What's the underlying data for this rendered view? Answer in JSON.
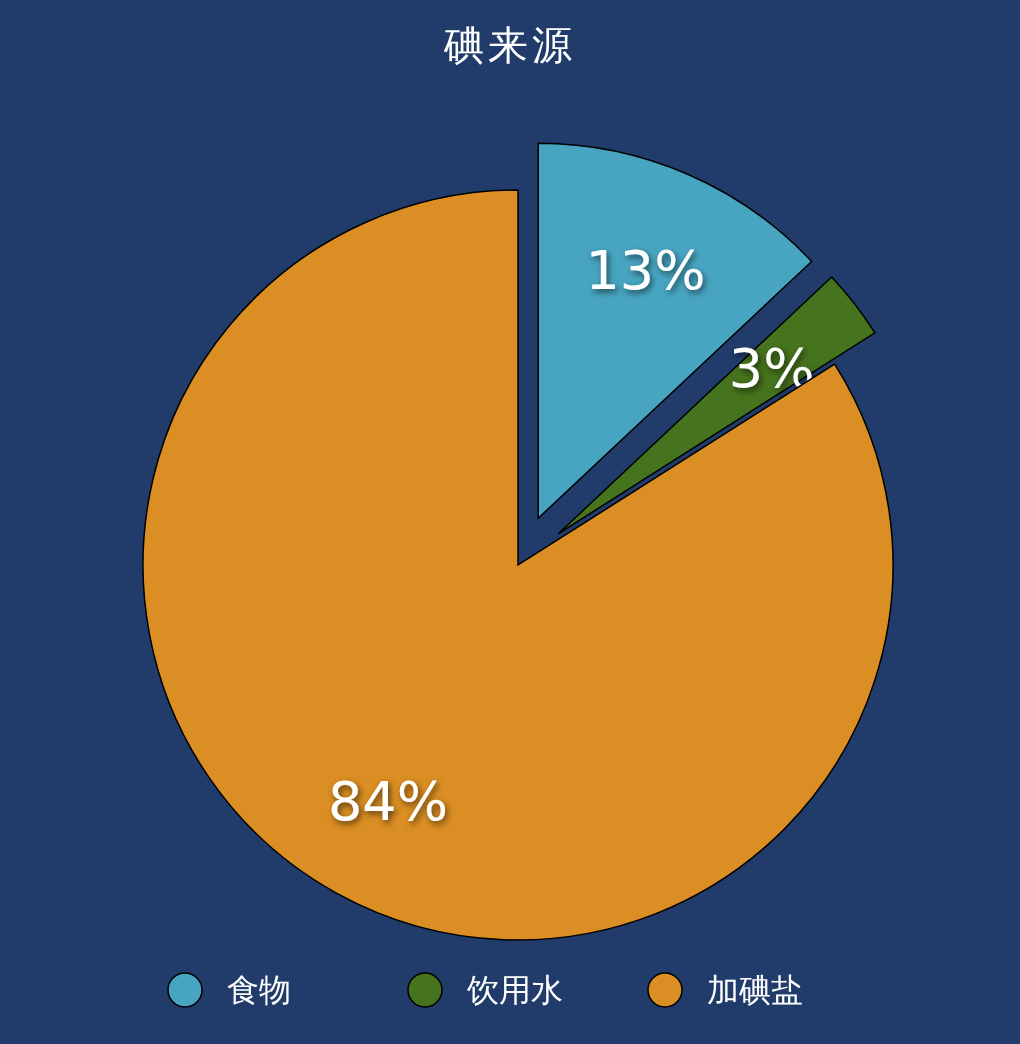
{
  "chart_data": {
    "type": "pie",
    "title": "碘来源",
    "categories": [
      "食物",
      "饮用水",
      "加碘盐"
    ],
    "values": [
      13,
      3,
      84
    ],
    "colors": [
      "#47a5c1",
      "#46731d",
      "#da8e23"
    ],
    "value_labels": [
      "13%",
      "3%",
      "84%"
    ],
    "legend": "bottom"
  }
}
